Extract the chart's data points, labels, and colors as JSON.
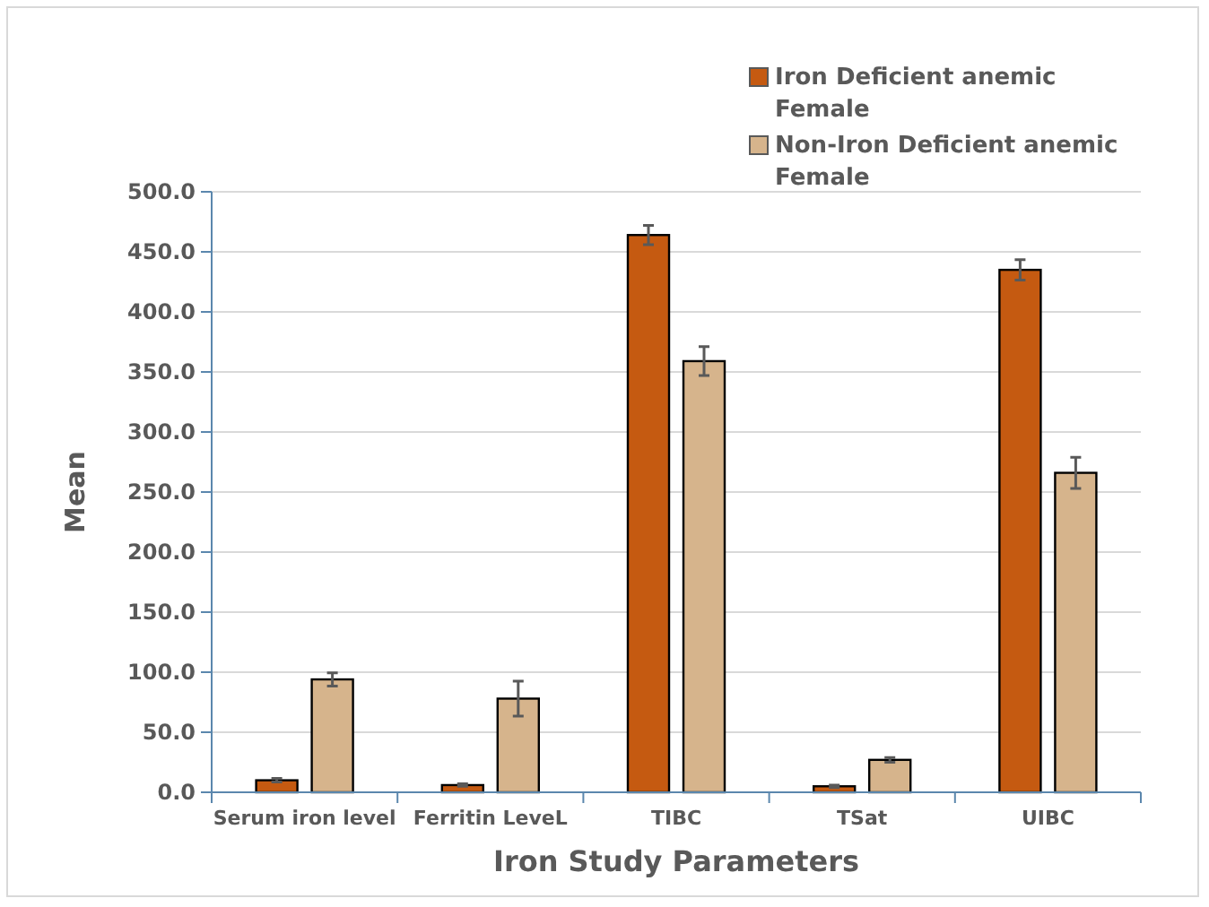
{
  "chart_data": {
    "type": "bar",
    "xlabel": "Iron Study Parameters",
    "ylabel": "Mean",
    "categories": [
      "Serum iron level",
      "Ferritin LeveL",
      "TIBC",
      "TSat",
      "UIBC"
    ],
    "series": [
      {
        "name": "Iron Deficient anemic Female",
        "color": "#c55a11",
        "values": [
          10,
          6,
          464,
          5,
          435
        ],
        "errors": [
          1.5,
          1,
          8,
          1,
          8.5
        ]
      },
      {
        "name": "Non-Iron Deficient anemic Female",
        "color": "#d6b48c",
        "values": [
          94,
          78,
          359,
          27,
          266
        ],
        "errors": [
          5.5,
          14.5,
          12,
          2,
          13
        ]
      }
    ],
    "ylim": [
      0,
      500
    ],
    "yticks": [
      {
        "value": 0,
        "label": "0.0"
      },
      {
        "value": 50,
        "label": "50.0"
      },
      {
        "value": 100,
        "label": "100.0"
      },
      {
        "value": 150,
        "label": "150.0"
      },
      {
        "value": 200,
        "label": "200.0"
      },
      {
        "value": 250,
        "label": "250.0"
      },
      {
        "value": 300,
        "label": "300.0"
      },
      {
        "value": 350,
        "label": "350.0"
      },
      {
        "value": 400,
        "label": "400.0"
      },
      {
        "value": 450,
        "label": "450.0"
      },
      {
        "value": 500,
        "label": "500.0"
      }
    ],
    "grid": "y",
    "legend": "top right"
  }
}
